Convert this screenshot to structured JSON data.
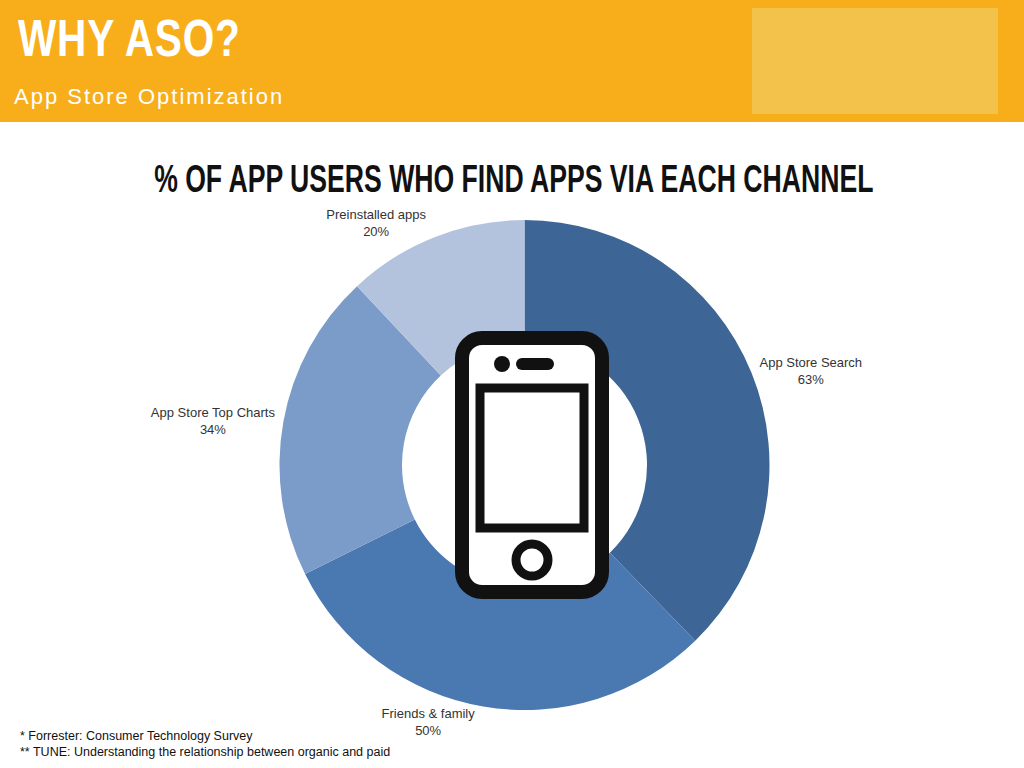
{
  "header": {
    "title": "WHY ASO?",
    "subtitle": "App Store Optimization"
  },
  "chart_data": {
    "type": "pie",
    "title": "% OF APP USERS WHO FIND APPS VIA EACH CHANNEL",
    "categories": [
      "App Store Search",
      "Friends & family",
      "App Store Top Charts",
      "Preinstalled apps"
    ],
    "values": [
      63,
      50,
      34,
      20
    ],
    "value_labels": [
      "63%",
      "50%",
      "34%",
      "20%"
    ],
    "colors": [
      "#3d6595",
      "#4a78b0",
      "#7b9bc9",
      "#b3c3de"
    ],
    "data_labels": true
  },
  "footnotes": [
    "* Forrester: Consumer Technology Survey",
    "** TUNE: Understanding the relationship between organic and paid"
  ]
}
